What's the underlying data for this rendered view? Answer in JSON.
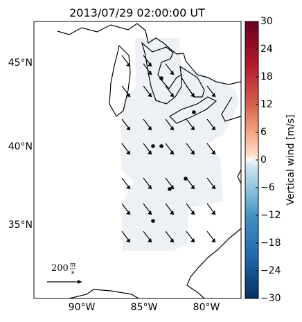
{
  "title": "2013/07/29 02:00:00 UT",
  "latitude_labels": [
    "45°N",
    "40°N",
    "35°N"
  ],
  "longitude_labels": [
    "90°W",
    "85°W",
    "80°W"
  ],
  "colorbar": {
    "label": "Vertical wind [m/s]",
    "lim": [
      -30,
      30
    ],
    "ticks": [
      30,
      24,
      18,
      12,
      6,
      0,
      {
        "value": -6,
        "label": "−6"
      },
      {
        "value": -12,
        "label": "−12"
      },
      {
        "value": -18,
        "label": "−18"
      },
      {
        "value": -24,
        "label": "−24"
      },
      {
        "value": -30,
        "label": "−30"
      }
    ]
  },
  "scale": {
    "number": "200",
    "unit_top": "m",
    "unit_bottom": "s"
  }
}
